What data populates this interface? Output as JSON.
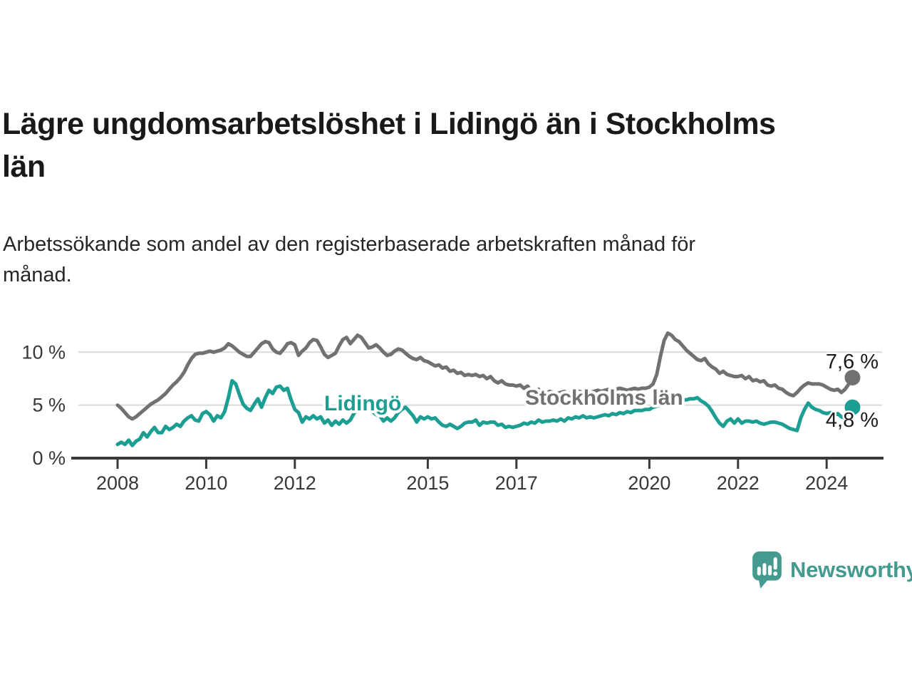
{
  "header": {
    "title": "Lägre ungdomsarbetslöshet i Lidingö än i Stockholms län",
    "title_lines": [
      "Lägre ungdomsarbetslöshet i Lidingö än i Stockholms",
      "län"
    ],
    "subtitle": "Arbetssökande som andel av den registerbaserade arbetskraften månad för månad.",
    "subtitle_lines": [
      "Arbetssökande som andel av den registerbaserade arbetskraften månad för",
      "månad."
    ]
  },
  "chart_data": {
    "type": "line",
    "title": "Lägre ungdomsarbetslöshet i Lidingö än i Stockholms län",
    "subtitle": "Arbetssökande som andel av den registerbaserade arbetskraften månad för månad.",
    "unit": "%",
    "grid": true,
    "legend_position": "inline-labels",
    "x_start_year": 2008,
    "points_per_year": 12,
    "x_end_label": "2024-08",
    "x_ticks": [
      2008,
      2010,
      2012,
      2015,
      2017,
      2020,
      2022,
      2024
    ],
    "y_ticks": [
      {
        "value": 0,
        "label": "0 %"
      },
      {
        "value": 5,
        "label": "5 %"
      },
      {
        "value": 10,
        "label": "10 %"
      }
    ],
    "ylim": [
      0,
      12.5
    ],
    "colors": {
      "axis": "#3a3a3a",
      "grid": "#d9d9d9",
      "tick_text": "#383838",
      "value_text": "#1c1c1c"
    },
    "series": [
      {
        "name": "Stockholms län",
        "color": "#717171",
        "end_value": 7.6,
        "end_label": "7,6 %",
        "values": [
          5.0,
          4.7,
          4.3,
          3.9,
          3.7,
          3.9,
          4.2,
          4.5,
          4.8,
          5.1,
          5.3,
          5.5,
          5.8,
          6.1,
          6.5,
          6.9,
          7.2,
          7.6,
          8.1,
          8.8,
          9.4,
          9.8,
          9.9,
          9.9,
          10.0,
          10.1,
          10.0,
          10.1,
          10.2,
          10.4,
          10.8,
          10.6,
          10.3,
          10.0,
          9.8,
          9.6,
          9.6,
          10.0,
          10.4,
          10.8,
          11.0,
          10.9,
          10.3,
          10.0,
          9.9,
          10.3,
          10.8,
          10.9,
          10.7,
          9.7,
          10.1,
          10.4,
          10.9,
          11.2,
          11.1,
          10.5,
          9.8,
          9.5,
          9.7,
          9.9,
          10.6,
          11.2,
          11.4,
          10.8,
          11.2,
          11.6,
          11.4,
          10.9,
          10.4,
          10.5,
          10.7,
          10.4,
          10.0,
          9.7,
          9.8,
          10.1,
          10.3,
          10.2,
          9.9,
          9.6,
          9.4,
          9.3,
          9.5,
          9.2,
          9.1,
          8.9,
          8.7,
          8.8,
          8.5,
          8.6,
          8.2,
          8.3,
          8.0,
          8.1,
          7.8,
          7.9,
          7.8,
          7.9,
          7.7,
          7.8,
          7.5,
          7.7,
          7.3,
          7.1,
          7.3,
          7.0,
          6.9,
          6.9,
          6.8,
          6.9,
          6.6,
          6.8,
          6.4,
          6.3,
          6.5,
          6.2,
          6.1,
          6.3,
          6.2,
          6.1,
          6.2,
          6.3,
          6.1,
          6.2,
          6.4,
          6.3,
          6.2,
          6.1,
          6.2,
          6.3,
          6.4,
          6.3,
          6.4,
          6.5,
          6.4,
          6.5,
          6.6,
          6.5,
          6.4,
          6.5,
          6.6,
          6.5,
          6.6,
          6.6,
          6.7,
          7.0,
          7.9,
          9.6,
          11.1,
          11.8,
          11.6,
          11.2,
          11.0,
          10.6,
          10.2,
          9.9,
          9.6,
          9.3,
          9.2,
          9.4,
          8.9,
          8.6,
          8.4,
          8.0,
          8.2,
          7.9,
          7.8,
          7.7,
          7.7,
          7.8,
          7.5,
          7.7,
          7.3,
          7.4,
          7.2,
          7.3,
          6.9,
          6.8,
          6.9,
          6.6,
          6.5,
          6.2,
          6.0,
          5.9,
          6.2,
          6.6,
          6.9,
          7.1,
          7.0,
          7.0,
          7.0,
          6.9,
          6.7,
          6.5,
          6.4,
          6.5,
          6.2,
          6.5,
          7.0,
          7.6
        ]
      },
      {
        "name": "Lidingö",
        "color": "#1d9e93",
        "end_value": 4.8,
        "end_label": "4,8 %",
        "values": [
          1.3,
          1.5,
          1.3,
          1.7,
          1.2,
          1.6,
          1.8,
          2.4,
          2.0,
          2.5,
          2.9,
          2.4,
          2.4,
          3.0,
          2.7,
          2.9,
          3.2,
          3.0,
          3.5,
          3.8,
          4.0,
          3.6,
          3.5,
          4.2,
          4.4,
          4.1,
          3.5,
          4.0,
          3.8,
          4.4,
          5.7,
          7.3,
          7.0,
          6.0,
          5.1,
          4.7,
          4.5,
          5.1,
          5.6,
          4.8,
          5.7,
          6.4,
          6.1,
          6.7,
          6.8,
          6.4,
          6.6,
          5.5,
          4.6,
          4.3,
          3.4,
          3.9,
          3.7,
          4.0,
          3.7,
          3.9,
          3.3,
          3.6,
          3.1,
          3.5,
          3.2,
          3.6,
          3.3,
          3.6,
          4.2,
          4.7,
          4.9,
          4.9,
          4.7,
          4.4,
          4.1,
          4.0,
          3.5,
          3.8,
          3.5,
          3.8,
          4.3,
          4.6,
          4.8,
          4.4,
          4.0,
          3.4,
          3.9,
          3.7,
          3.9,
          3.7,
          3.8,
          3.4,
          3.1,
          3.0,
          3.2,
          3.0,
          2.8,
          3.0,
          3.3,
          3.4,
          3.4,
          3.6,
          3.1,
          3.4,
          3.3,
          3.4,
          3.4,
          3.1,
          3.2,
          2.9,
          3.0,
          2.9,
          3.0,
          3.1,
          3.3,
          3.2,
          3.4,
          3.3,
          3.6,
          3.4,
          3.5,
          3.5,
          3.6,
          3.5,
          3.7,
          3.5,
          3.8,
          3.7,
          3.9,
          3.8,
          4.0,
          3.8,
          3.9,
          3.8,
          3.9,
          4.0,
          4.1,
          4.0,
          4.2,
          4.1,
          4.3,
          4.2,
          4.4,
          4.3,
          4.5,
          4.5,
          4.5,
          4.6,
          4.6,
          4.8,
          4.9,
          5.1,
          5.3,
          5.3,
          5.4,
          5.4,
          5.3,
          5.5,
          5.5,
          5.6,
          5.6,
          5.7,
          5.4,
          5.2,
          4.9,
          4.4,
          3.8,
          3.3,
          3.0,
          3.5,
          3.7,
          3.3,
          3.7,
          3.3,
          3.5,
          3.5,
          3.4,
          3.5,
          3.3,
          3.2,
          3.3,
          3.4,
          3.4,
          3.3,
          3.2,
          3.0,
          2.8,
          2.7,
          2.6,
          3.8,
          4.6,
          5.2,
          4.8,
          4.6,
          4.5,
          4.3,
          4.2,
          4.3,
          4.0,
          4.2,
          3.9,
          3.8,
          4.4,
          4.8
        ]
      }
    ]
  },
  "footer": {
    "brand": "Newsworthy",
    "brand_color": "#459a8f",
    "logo_icon": "bar-chart-speech-bubble-icon"
  }
}
